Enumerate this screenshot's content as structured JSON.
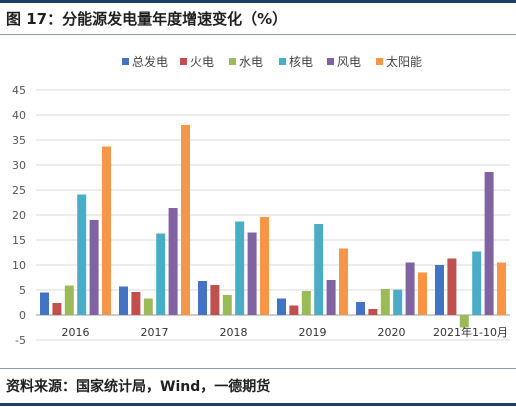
{
  "header": {
    "title": "图 17：分能源发电量年度增速变化（%）"
  },
  "footer": {
    "source": "资料来源：国家统计局，Wind，一德期货"
  },
  "colors": {
    "总发电": "#4472c4",
    "火电": "#c0504d",
    "水电": "#9bbb59",
    "核电": "#4bacc6",
    "风电": "#8064a2",
    "太阳能": "#f79646"
  },
  "chart_data": {
    "type": "bar",
    "categories": [
      "2016",
      "2017",
      "2018",
      "2019",
      "2020",
      "2021年1-10月"
    ],
    "series": [
      {
        "name": "总发电",
        "values": [
          4.5,
          5.7,
          6.8,
          3.3,
          2.6,
          10.0
        ]
      },
      {
        "name": "火电",
        "values": [
          2.4,
          4.6,
          6.0,
          1.9,
          1.2,
          11.3
        ]
      },
      {
        "name": "水电",
        "values": [
          5.9,
          3.3,
          4.0,
          4.8,
          5.2,
          -2.5
        ]
      },
      {
        "name": "核电",
        "values": [
          24.1,
          16.3,
          18.7,
          18.2,
          5.1,
          12.7
        ]
      },
      {
        "name": "风电",
        "values": [
          19.0,
          21.4,
          16.5,
          7.0,
          10.5,
          28.6
        ]
      },
      {
        "name": "太阳能",
        "values": [
          33.7,
          38.0,
          19.6,
          13.3,
          8.5,
          10.5
        ]
      }
    ],
    "yticks": [
      -5,
      0,
      5,
      10,
      15,
      20,
      25,
      30,
      35,
      40,
      45
    ],
    "ylim": [
      -5,
      45
    ],
    "grid": true,
    "legend": "top"
  }
}
